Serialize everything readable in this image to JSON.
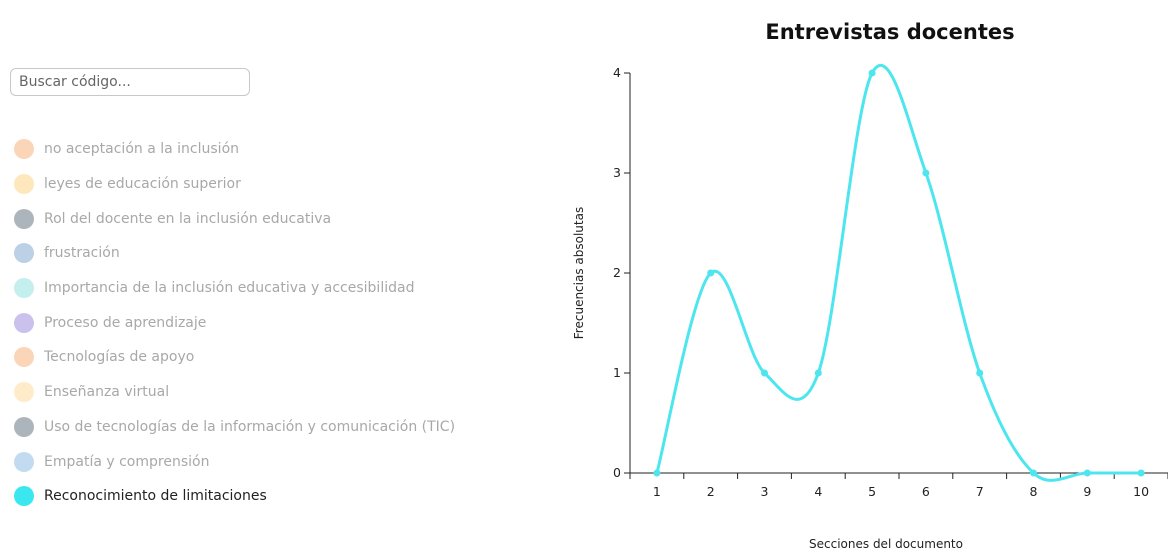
{
  "search": {
    "placeholder": "Buscar código..."
  },
  "legend": {
    "items": [
      {
        "label": "no aceptación a la inclusión",
        "color": "#f4a261",
        "active": false
      },
      {
        "label": "leyes de educación superior",
        "color": "#fcc96b",
        "active": false
      },
      {
        "label": "Rol del docente en la inclusión educativa",
        "color": "#4a5a6a",
        "active": false
      },
      {
        "label": "frustración",
        "color": "#6a97c8",
        "active": false
      },
      {
        "label": "Importancia de la inclusión educativa y accesibilidad",
        "color": "#7fd9d9",
        "active": false
      },
      {
        "label": "Proceso de aprendizaje",
        "color": "#8a78d6",
        "active": false
      },
      {
        "label": "Tecnologías de apoyo",
        "color": "#f4a261",
        "active": false
      },
      {
        "label": "Enseñanza virtual",
        "color": "#fcd28a",
        "active": false
      },
      {
        "label": "Uso de tecnologías de la información y comunicación (TIC)",
        "color": "#4a5a6a",
        "active": false
      },
      {
        "label": "Empatía y comprensión",
        "color": "#7ab0e0",
        "active": false
      },
      {
        "label": "Reconocimiento de limitaciones",
        "color": "#3be7ee",
        "active": true
      }
    ]
  },
  "chart_data": {
    "type": "line",
    "title": "Entrevistas docentes",
    "xlabel": "Secciones del documento",
    "ylabel": "Frecuencias absolutas",
    "x": [
      1,
      2,
      3,
      4,
      5,
      6,
      7,
      8,
      9,
      10
    ],
    "x_tick_labels": [
      "1",
      "2",
      "3",
      "4",
      "5",
      "6",
      "7",
      "8",
      "9",
      "10"
    ],
    "y_ticks": [
      0,
      1,
      2,
      3,
      4
    ],
    "y_tick_labels": [
      "0",
      "1",
      "2",
      "3",
      "4"
    ],
    "ylim": [
      0,
      4
    ],
    "xlim": [
      0.5,
      10.5
    ],
    "smooth": true,
    "grid": false,
    "series": [
      {
        "values": [
          0,
          2,
          1,
          1,
          4,
          3,
          1,
          0,
          0,
          0
        ],
        "color": "#4de6ee"
      }
    ]
  }
}
